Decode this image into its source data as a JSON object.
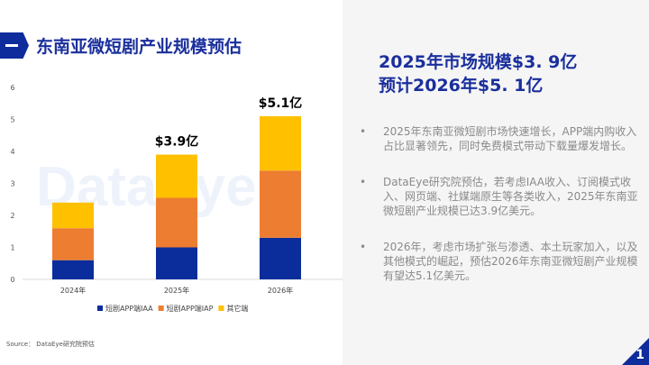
{
  "header": {
    "title": "东南亚微短剧产业规模预估"
  },
  "headline": {
    "line1": "2025年市场规模$3. 9亿",
    "line2": "预计2026年$5. 1亿"
  },
  "bullets": [
    "2025年东南亚微短剧市场快速增长，APP端内购收入占比显著领先，同时免费模式带动下载量爆发增长。",
    "DataEye研究院预估，若考虑IAA收入、订阅模式收入、网页端、社媒端原生等各类收入，2025年东南亚微短剧产业规模已达3.9亿美元。",
    "2026年，考虑市场扩张与渗透、本土玩家加入，以及其他模式的崛起，预估2026年东南亚微短剧产业规模有望达5.1亿美元。"
  ],
  "bullet_symbol": "•",
  "source": "Source：  DataEye研究院预估",
  "page_number": "1",
  "watermark": "DataEye",
  "chart_data": {
    "type": "bar",
    "stacked": true,
    "categories": [
      "2024年",
      "2025年",
      "2026年"
    ],
    "series": [
      {
        "name": "短剧APP端IAA",
        "values": [
          0.6,
          1.0,
          1.3
        ],
        "color": "#0a2d9b"
      },
      {
        "name": "短剧APP端IAP",
        "values": [
          1.0,
          1.55,
          2.1
        ],
        "color": "#ed7d31"
      },
      {
        "name": "其它端",
        "values": [
          0.8,
          1.35,
          1.7
        ],
        "color": "#ffc000"
      }
    ],
    "annotations": [
      {
        "category": "2025年",
        "text": "$3.9亿"
      },
      {
        "category": "2026年",
        "text": "$5.1亿"
      }
    ],
    "yticks": [
      "0",
      "1",
      "2",
      "3",
      "4",
      "5",
      "6"
    ],
    "ylim": [
      0,
      6
    ],
    "grid": false,
    "legend": "bottom"
  }
}
